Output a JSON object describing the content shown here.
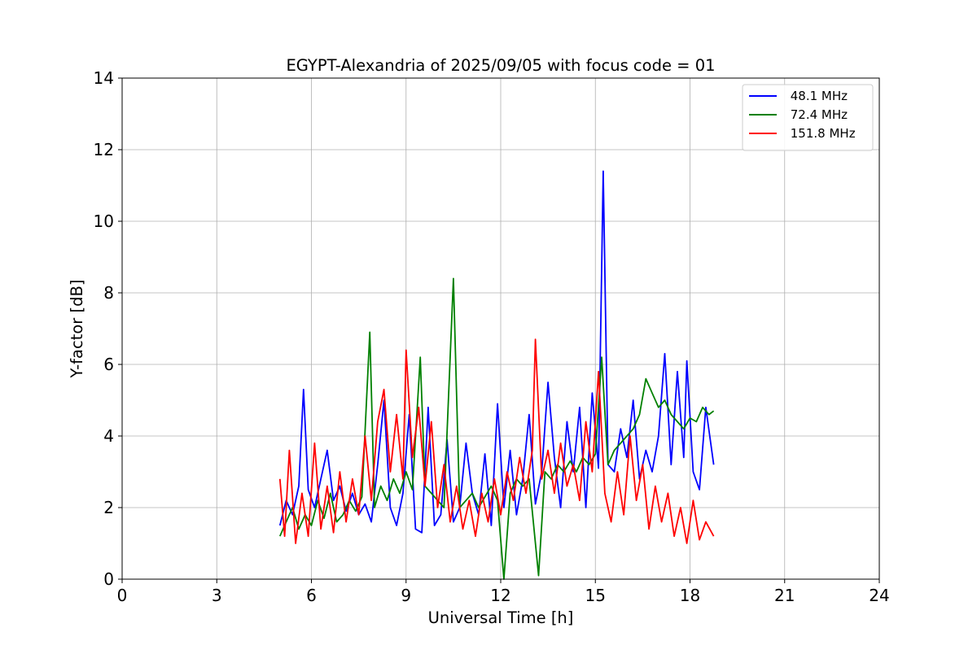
{
  "chart_data": {
    "type": "line",
    "title": "EGYPT-Alexandria of 2025/09/05 with focus code = 01",
    "xlabel": "Universal Time [h]",
    "ylabel": "Y-factor [dB]",
    "xlim": [
      0,
      24
    ],
    "ylim": [
      0,
      14
    ],
    "xticks": [
      0,
      3,
      6,
      9,
      12,
      15,
      18,
      21,
      24
    ],
    "yticks": [
      0,
      2,
      4,
      6,
      8,
      10,
      12,
      14
    ],
    "grid": true,
    "legend_position": "top-right",
    "series": [
      {
        "name": " 48.1 MHz",
        "color": "#0000ff",
        "x": [
          5.0,
          5.2,
          5.4,
          5.6,
          5.75,
          5.9,
          6.1,
          6.3,
          6.5,
          6.7,
          6.9,
          7.1,
          7.3,
          7.5,
          7.7,
          7.9,
          8.1,
          8.3,
          8.5,
          8.7,
          8.9,
          9.1,
          9.3,
          9.5,
          9.7,
          9.9,
          10.1,
          10.3,
          10.5,
          10.7,
          10.9,
          11.1,
          11.3,
          11.5,
          11.7,
          11.9,
          12.1,
          12.3,
          12.5,
          12.7,
          12.9,
          13.1,
          13.3,
          13.5,
          13.7,
          13.9,
          14.1,
          14.3,
          14.5,
          14.7,
          14.9,
          15.1,
          15.25,
          15.4,
          15.6,
          15.8,
          16.0,
          16.2,
          16.4,
          16.6,
          16.8,
          17.0,
          17.2,
          17.4,
          17.6,
          17.8,
          17.9,
          18.1,
          18.3,
          18.5,
          18.75
        ],
        "y": [
          1.5,
          2.2,
          1.8,
          2.6,
          5.3,
          2.5,
          2.0,
          2.8,
          3.6,
          2.2,
          2.6,
          1.9,
          2.4,
          1.8,
          2.1,
          1.6,
          3.2,
          5.0,
          2.0,
          1.5,
          2.4,
          4.6,
          1.4,
          1.3,
          4.8,
          1.5,
          1.8,
          3.9,
          1.6,
          2.0,
          3.8,
          2.4,
          1.8,
          3.5,
          1.5,
          4.9,
          2.0,
          3.6,
          1.8,
          2.8,
          4.6,
          2.1,
          3.0,
          5.5,
          3.4,
          2.0,
          4.4,
          3.0,
          4.8,
          2.0,
          5.2,
          3.1,
          11.4,
          3.2,
          3.0,
          4.2,
          3.4,
          5.0,
          2.8,
          3.6,
          3.0,
          4.0,
          6.3,
          3.2,
          5.8,
          3.4,
          6.1,
          3.0,
          2.5,
          4.8,
          3.2
        ]
      },
      {
        "name": " 72.4 MHz",
        "color": "#008000",
        "x": [
          5.0,
          5.2,
          5.4,
          5.6,
          5.8,
          6.0,
          6.2,
          6.4,
          6.6,
          6.8,
          7.0,
          7.2,
          7.4,
          7.6,
          7.85,
          8.0,
          8.2,
          8.4,
          8.6,
          8.8,
          9.0,
          9.2,
          9.45,
          9.6,
          9.8,
          10.0,
          10.2,
          10.5,
          10.7,
          10.9,
          11.1,
          11.3,
          11.5,
          11.7,
          11.9,
          12.1,
          12.3,
          12.5,
          12.7,
          12.9,
          13.2,
          13.4,
          13.6,
          13.8,
          14.0,
          14.2,
          14.4,
          14.6,
          14.8,
          15.0,
          15.2,
          15.4,
          15.6,
          15.8,
          16.0,
          16.2,
          16.4,
          16.6,
          16.8,
          17.0,
          17.2,
          17.4,
          17.6,
          17.8,
          18.0,
          18.2,
          18.4,
          18.6,
          18.75
        ],
        "y": [
          1.2,
          1.6,
          2.0,
          1.4,
          1.8,
          1.5,
          2.2,
          1.7,
          2.4,
          1.6,
          1.8,
          2.2,
          1.9,
          2.3,
          6.9,
          2.0,
          2.6,
          2.2,
          2.8,
          2.4,
          3.0,
          2.5,
          6.2,
          2.6,
          2.4,
          2.2,
          2.0,
          8.4,
          2.0,
          2.2,
          2.4,
          2.0,
          2.3,
          2.6,
          2.2,
          0.0,
          2.4,
          2.8,
          2.6,
          2.8,
          0.1,
          3.0,
          2.8,
          3.2,
          3.0,
          3.3,
          3.0,
          3.4,
          3.2,
          3.5,
          6.2,
          3.2,
          3.6,
          3.8,
          4.0,
          4.2,
          4.6,
          5.6,
          5.2,
          4.8,
          5.0,
          4.6,
          4.4,
          4.2,
          4.5,
          4.4,
          4.8,
          4.6,
          4.7
        ]
      },
      {
        "name": " 151.8 MHz",
        "color": "#ff0000",
        "x": [
          5.0,
          5.15,
          5.3,
          5.5,
          5.7,
          5.9,
          6.1,
          6.3,
          6.5,
          6.7,
          6.9,
          7.1,
          7.3,
          7.5,
          7.7,
          7.9,
          8.1,
          8.3,
          8.5,
          8.7,
          8.9,
          9.0,
          9.2,
          9.4,
          9.6,
          9.8,
          10.0,
          10.2,
          10.4,
          10.6,
          10.8,
          11.0,
          11.2,
          11.4,
          11.6,
          11.8,
          12.0,
          12.2,
          12.4,
          12.6,
          12.8,
          13.0,
          13.1,
          13.3,
          13.5,
          13.7,
          13.9,
          14.1,
          14.3,
          14.5,
          14.7,
          14.9,
          15.1,
          15.3,
          15.5,
          15.7,
          15.9,
          16.1,
          16.3,
          16.5,
          16.7,
          16.9,
          17.1,
          17.3,
          17.5,
          17.7,
          17.9,
          18.1,
          18.3,
          18.5,
          18.75
        ],
        "y": [
          2.8,
          1.2,
          3.6,
          1.0,
          2.4,
          1.2,
          3.8,
          1.4,
          2.6,
          1.3,
          3.0,
          1.6,
          2.8,
          1.8,
          4.0,
          2.2,
          4.4,
          5.3,
          3.0,
          4.6,
          2.8,
          6.4,
          3.4,
          4.8,
          2.6,
          4.4,
          2.0,
          3.2,
          1.6,
          2.6,
          1.4,
          2.2,
          1.2,
          2.4,
          1.6,
          2.8,
          1.8,
          3.0,
          2.2,
          3.4,
          2.4,
          3.6,
          6.7,
          2.8,
          3.6,
          2.4,
          3.8,
          2.6,
          3.2,
          2.2,
          4.4,
          3.0,
          5.8,
          2.4,
          1.6,
          3.0,
          1.8,
          4.0,
          2.2,
          3.2,
          1.4,
          2.6,
          1.6,
          2.4,
          1.2,
          2.0,
          1.0,
          2.2,
          1.1,
          1.6,
          1.2
        ]
      }
    ]
  }
}
